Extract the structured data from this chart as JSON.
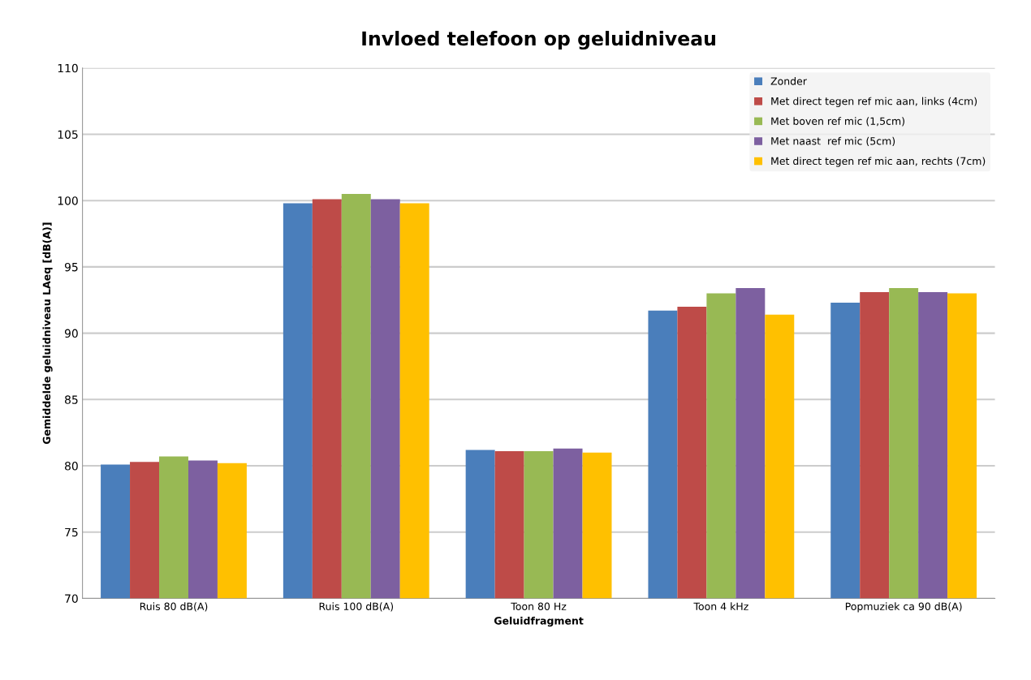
{
  "chart_data": {
    "type": "bar",
    "title": "Invloed telefoon op geluidniveau",
    "xlabel": "Geluidfragment",
    "ylabel": "Gemiddelde geluidniveau LAeq [dB(A)]",
    "categories": [
      "Ruis 80 dB(A)",
      "Ruis 100 dB(A)",
      "Toon 80 Hz",
      "Toon 4 kHz",
      "Popmuziek ca 90 dB(A)"
    ],
    "series": [
      {
        "name": "Zonder",
        "color": "#4a7ebb",
        "values": [
          80.1,
          99.8,
          81.2,
          91.7,
          92.3
        ]
      },
      {
        "name": "Met direct tegen ref mic aan, links (4cm)",
        "color": "#be4b48",
        "values": [
          80.3,
          100.1,
          81.1,
          92.0,
          93.1
        ]
      },
      {
        "name": "Met boven ref mic (1,5cm)",
        "color": "#98b954",
        "values": [
          80.7,
          100.5,
          81.1,
          93.0,
          93.4
        ]
      },
      {
        "name": "Met naast  ref mic (5cm)",
        "color": "#7d60a0",
        "values": [
          80.4,
          100.1,
          81.3,
          93.4,
          93.1
        ]
      },
      {
        "name": "Met direct tegen ref mic aan, rechts (7cm)",
        "color": "#ffc000",
        "values": [
          80.2,
          99.8,
          81.0,
          91.4,
          93.0
        ]
      }
    ],
    "ylim": [
      70,
      110
    ],
    "yticks": [
      70,
      75,
      80,
      85,
      90,
      95,
      100,
      105,
      110
    ],
    "grid": "y",
    "legend": "top right"
  }
}
